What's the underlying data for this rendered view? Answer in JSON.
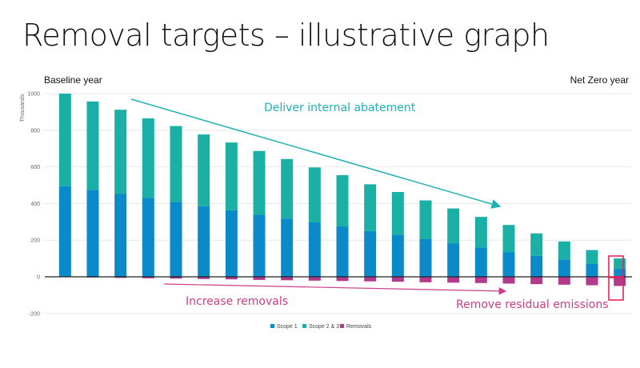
{
  "title": "Removal targets – illustrative graph",
  "labels": {
    "baseline": "Baseline year",
    "net_zero": "Net Zero year"
  },
  "annotations": {
    "abatement": "Deliver internal abatement",
    "increase": "Increase removals",
    "residual": "Remove residual emissions"
  },
  "colors": {
    "scope1": "#0a8ac9",
    "scope23": "#1bb0a6",
    "removals": "#b23a8c",
    "arrow_teal": "#20b2b4",
    "arrow_pink": "#cc3d86",
    "highlight_box": "#e0265b"
  },
  "chart_data": {
    "type": "bar",
    "stacked": true,
    "ylabel": "Thousands",
    "ylim": [
      -200,
      1000
    ],
    "yticks": [
      -200,
      0,
      200,
      400,
      600,
      800,
      1000
    ],
    "grid": true,
    "legend_position": "bottom",
    "categories": [
      "",
      "",
      "",
      "",
      "",
      "",
      "",
      "",
      "",
      "",
      "",
      "",
      "",
      "",
      "",
      "",
      "",
      "",
      "",
      "",
      ""
    ],
    "series": [
      {
        "name": "Scope 1",
        "values": [
          495,
          475,
          452,
          430,
          408,
          385,
          363,
          340,
          318,
          297,
          275,
          250,
          230,
          207,
          183,
          160,
          135,
          115,
          95,
          70,
          45
        ]
      },
      {
        "name": "Scope 2 & 3",
        "values": [
          505,
          482,
          460,
          435,
          415,
          392,
          370,
          347,
          325,
          300,
          280,
          255,
          233,
          210,
          190,
          167,
          148,
          122,
          98,
          76,
          55
        ]
      },
      {
        "name": "Removals",
        "values": [
          -2,
          -4,
          -6,
          -8,
          -10,
          -12,
          -14,
          -17,
          -19,
          -21,
          -23,
          -25,
          -27,
          -30,
          -32,
          -34,
          -37,
          -40,
          -43,
          -46,
          -50
        ]
      }
    ]
  }
}
